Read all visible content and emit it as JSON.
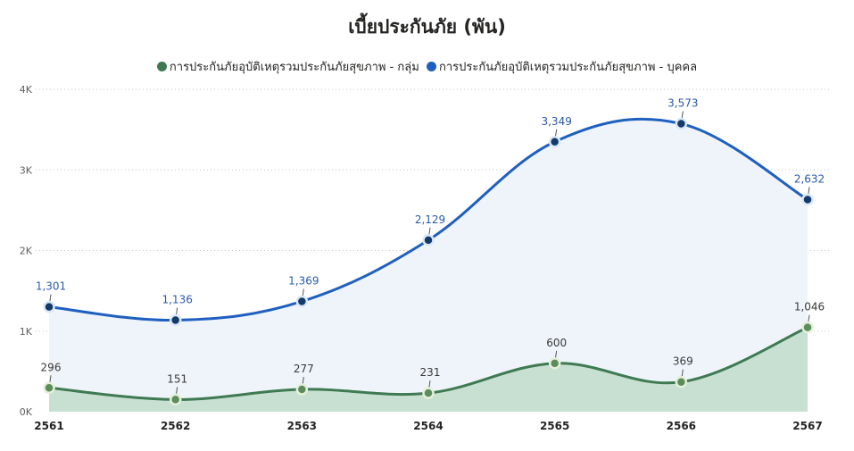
{
  "chart_data": {
    "type": "area",
    "title": "เบี้ยประกันภัย (พัน)",
    "xlabel": "",
    "ylabel": "",
    "ylim": [
      0,
      4000
    ],
    "yticks": [
      {
        "value": 0,
        "label": "0K"
      },
      {
        "value": 1000,
        "label": "1K"
      },
      {
        "value": 2000,
        "label": "2K"
      },
      {
        "value": 3000,
        "label": "3K"
      },
      {
        "value": 4000,
        "label": "4K"
      }
    ],
    "grid": true,
    "legend_position": "top-center",
    "categories": [
      "2561",
      "2562",
      "2563",
      "2564",
      "2565",
      "2566",
      "2567"
    ],
    "series": [
      {
        "name": "การประกันภัยอุบัติเหตุรวมประกันภัยสุขภาพ - กลุ่ม",
        "color": "#3f7a52",
        "fill": "#c8e0d2",
        "marker": "#5c8c5c",
        "label_color": "#3a3a3a",
        "values": [
          296,
          151,
          277,
          231,
          600,
          369,
          1046
        ],
        "labels": [
          "296",
          "151",
          "277",
          "231",
          "600",
          "369",
          "1,046"
        ]
      },
      {
        "name": "การประกันภัยอุบัติเหตุรวมประกันภัยสุขภาพ - บุคคล",
        "color": "#1f5fbf",
        "fill": "#eef4fa",
        "marker": "#143a6b",
        "label_color": "#2a5aa8",
        "values": [
          1301,
          1136,
          1369,
          2129,
          3349,
          3573,
          2632
        ],
        "labels": [
          "1,301",
          "1,136",
          "1,369",
          "2,129",
          "3,349",
          "3,573",
          "2,632"
        ]
      }
    ]
  }
}
